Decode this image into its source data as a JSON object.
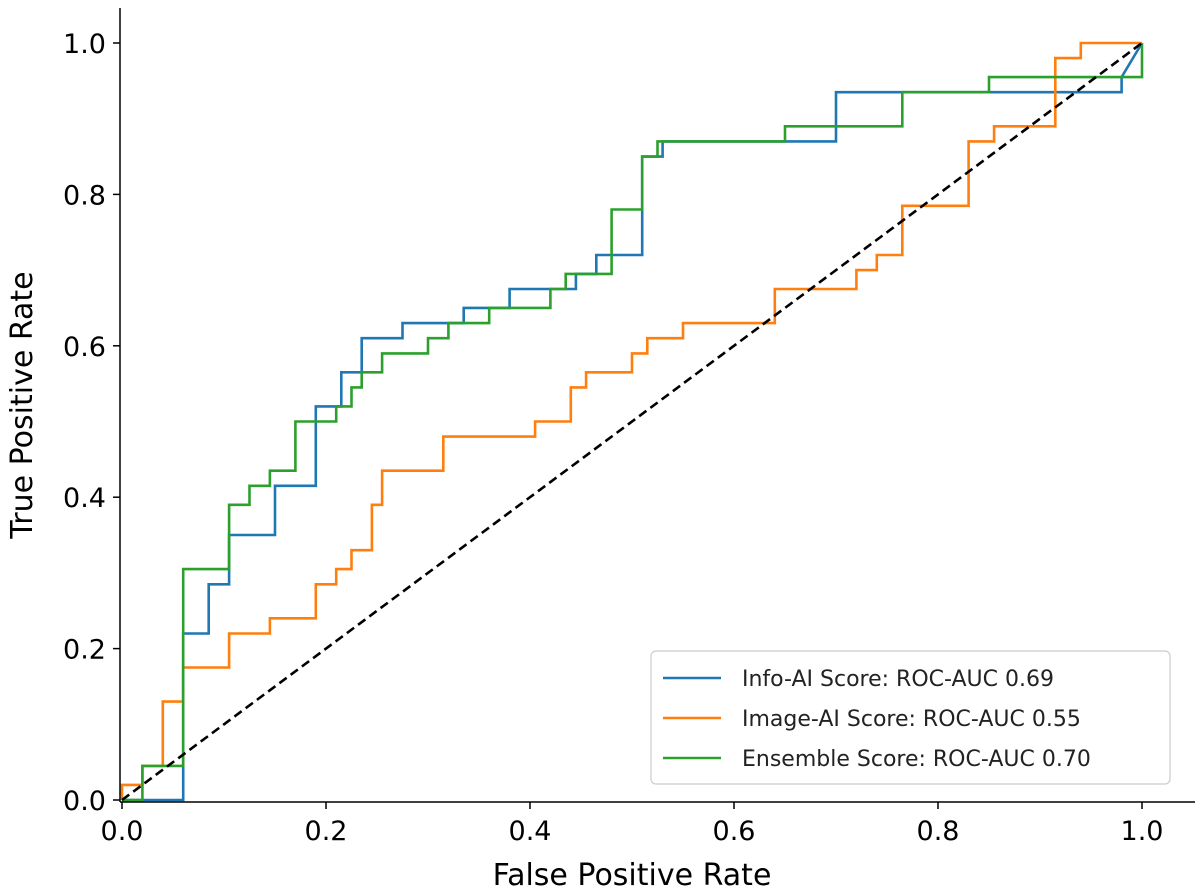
{
  "chart_data": {
    "type": "line",
    "xlabel": "False Positive Rate",
    "ylabel": "True Positive Rate",
    "xlim": [
      0.0,
      1.0
    ],
    "ylim": [
      0.0,
      1.0
    ],
    "x_ticks": [
      "0.0",
      "0.2",
      "0.4",
      "0.6",
      "0.8",
      "1.0"
    ],
    "y_ticks": [
      "0.0",
      "0.2",
      "0.4",
      "0.6",
      "0.8",
      "1.0"
    ],
    "grid": false,
    "legend_position": "lower-right",
    "series": [
      {
        "name": "Info-AI Score: ROC-AUC 0.69",
        "color": "#1f77b4",
        "x": [
          0.0,
          0.02,
          0.04,
          0.04,
          0.06,
          0.06,
          0.085,
          0.085,
          0.105,
          0.105,
          0.15,
          0.15,
          0.19,
          0.19,
          0.215,
          0.215,
          0.235,
          0.235,
          0.275,
          0.275,
          0.335,
          0.335,
          0.38,
          0.38,
          0.445,
          0.445,
          0.465,
          0.465,
          0.51,
          0.51,
          0.53,
          0.53,
          0.64,
          0.64,
          0.7,
          0.7,
          0.725,
          0.725,
          0.98,
          0.98,
          1.0
        ],
        "y": [
          0.0,
          0.0,
          0.0,
          0.0,
          0.0,
          0.22,
          0.22,
          0.285,
          0.285,
          0.35,
          0.35,
          0.415,
          0.415,
          0.52,
          0.52,
          0.565,
          0.565,
          0.61,
          0.61,
          0.63,
          0.63,
          0.65,
          0.65,
          0.675,
          0.675,
          0.695,
          0.695,
          0.72,
          0.72,
          0.85,
          0.85,
          0.87,
          0.87,
          0.87,
          0.87,
          0.935,
          0.935,
          0.935,
          0.935,
          0.955,
          1.0
        ]
      },
      {
        "name": "Image-AI Score: ROC-AUC 0.55",
        "color": "#ff7f0e",
        "x": [
          0.0,
          0.0,
          0.02,
          0.02,
          0.04,
          0.04,
          0.06,
          0.06,
          0.105,
          0.105,
          0.145,
          0.145,
          0.19,
          0.19,
          0.21,
          0.21,
          0.225,
          0.225,
          0.245,
          0.245,
          0.255,
          0.255,
          0.315,
          0.315,
          0.405,
          0.405,
          0.44,
          0.44,
          0.455,
          0.455,
          0.47,
          0.47,
          0.5,
          0.5,
          0.515,
          0.515,
          0.525,
          0.525,
          0.55,
          0.55,
          0.64,
          0.64,
          0.72,
          0.72,
          0.74,
          0.74,
          0.765,
          0.765,
          0.8,
          0.8,
          0.83,
          0.83,
          0.855,
          0.855,
          0.875,
          0.875,
          0.915,
          0.915,
          0.94,
          0.94,
          1.0
        ],
        "y": [
          0.0,
          0.02,
          0.02,
          0.045,
          0.045,
          0.13,
          0.13,
          0.175,
          0.175,
          0.22,
          0.22,
          0.24,
          0.24,
          0.285,
          0.285,
          0.305,
          0.305,
          0.33,
          0.33,
          0.39,
          0.39,
          0.435,
          0.435,
          0.48,
          0.48,
          0.5,
          0.5,
          0.545,
          0.545,
          0.565,
          0.565,
          0.565,
          0.565,
          0.59,
          0.59,
          0.61,
          0.61,
          0.61,
          0.61,
          0.63,
          0.63,
          0.675,
          0.675,
          0.7,
          0.7,
          0.72,
          0.72,
          0.785,
          0.785,
          0.785,
          0.785,
          0.87,
          0.87,
          0.89,
          0.89,
          0.89,
          0.89,
          0.98,
          0.98,
          1.0,
          1.0
        ]
      },
      {
        "name": "Ensemble Score: ROC-AUC 0.70",
        "color": "#2ca02c",
        "x": [
          0.0,
          0.02,
          0.02,
          0.06,
          0.06,
          0.105,
          0.105,
          0.125,
          0.125,
          0.145,
          0.145,
          0.17,
          0.17,
          0.21,
          0.21,
          0.225,
          0.225,
          0.235,
          0.235,
          0.255,
          0.255,
          0.285,
          0.285,
          0.3,
          0.3,
          0.32,
          0.32,
          0.345,
          0.345,
          0.36,
          0.36,
          0.42,
          0.42,
          0.435,
          0.435,
          0.48,
          0.48,
          0.5,
          0.5,
          0.51,
          0.51,
          0.525,
          0.525,
          0.65,
          0.65,
          0.72,
          0.72,
          0.765,
          0.765,
          0.85,
          0.85,
          1.0,
          1.0
        ],
        "y": [
          0.0,
          0.0,
          0.045,
          0.045,
          0.305,
          0.305,
          0.39,
          0.39,
          0.415,
          0.415,
          0.435,
          0.435,
          0.5,
          0.5,
          0.52,
          0.52,
          0.545,
          0.545,
          0.565,
          0.565,
          0.59,
          0.59,
          0.59,
          0.59,
          0.61,
          0.61,
          0.63,
          0.63,
          0.63,
          0.63,
          0.65,
          0.65,
          0.675,
          0.675,
          0.695,
          0.695,
          0.78,
          0.78,
          0.78,
          0.78,
          0.85,
          0.85,
          0.87,
          0.87,
          0.89,
          0.89,
          0.89,
          0.89,
          0.935,
          0.935,
          0.955,
          0.955,
          1.0
        ]
      }
    ],
    "reference_line": {
      "style": "dashed",
      "color": "#000000",
      "x": [
        0.0,
        1.0
      ],
      "y": [
        0.0,
        1.0
      ]
    }
  }
}
